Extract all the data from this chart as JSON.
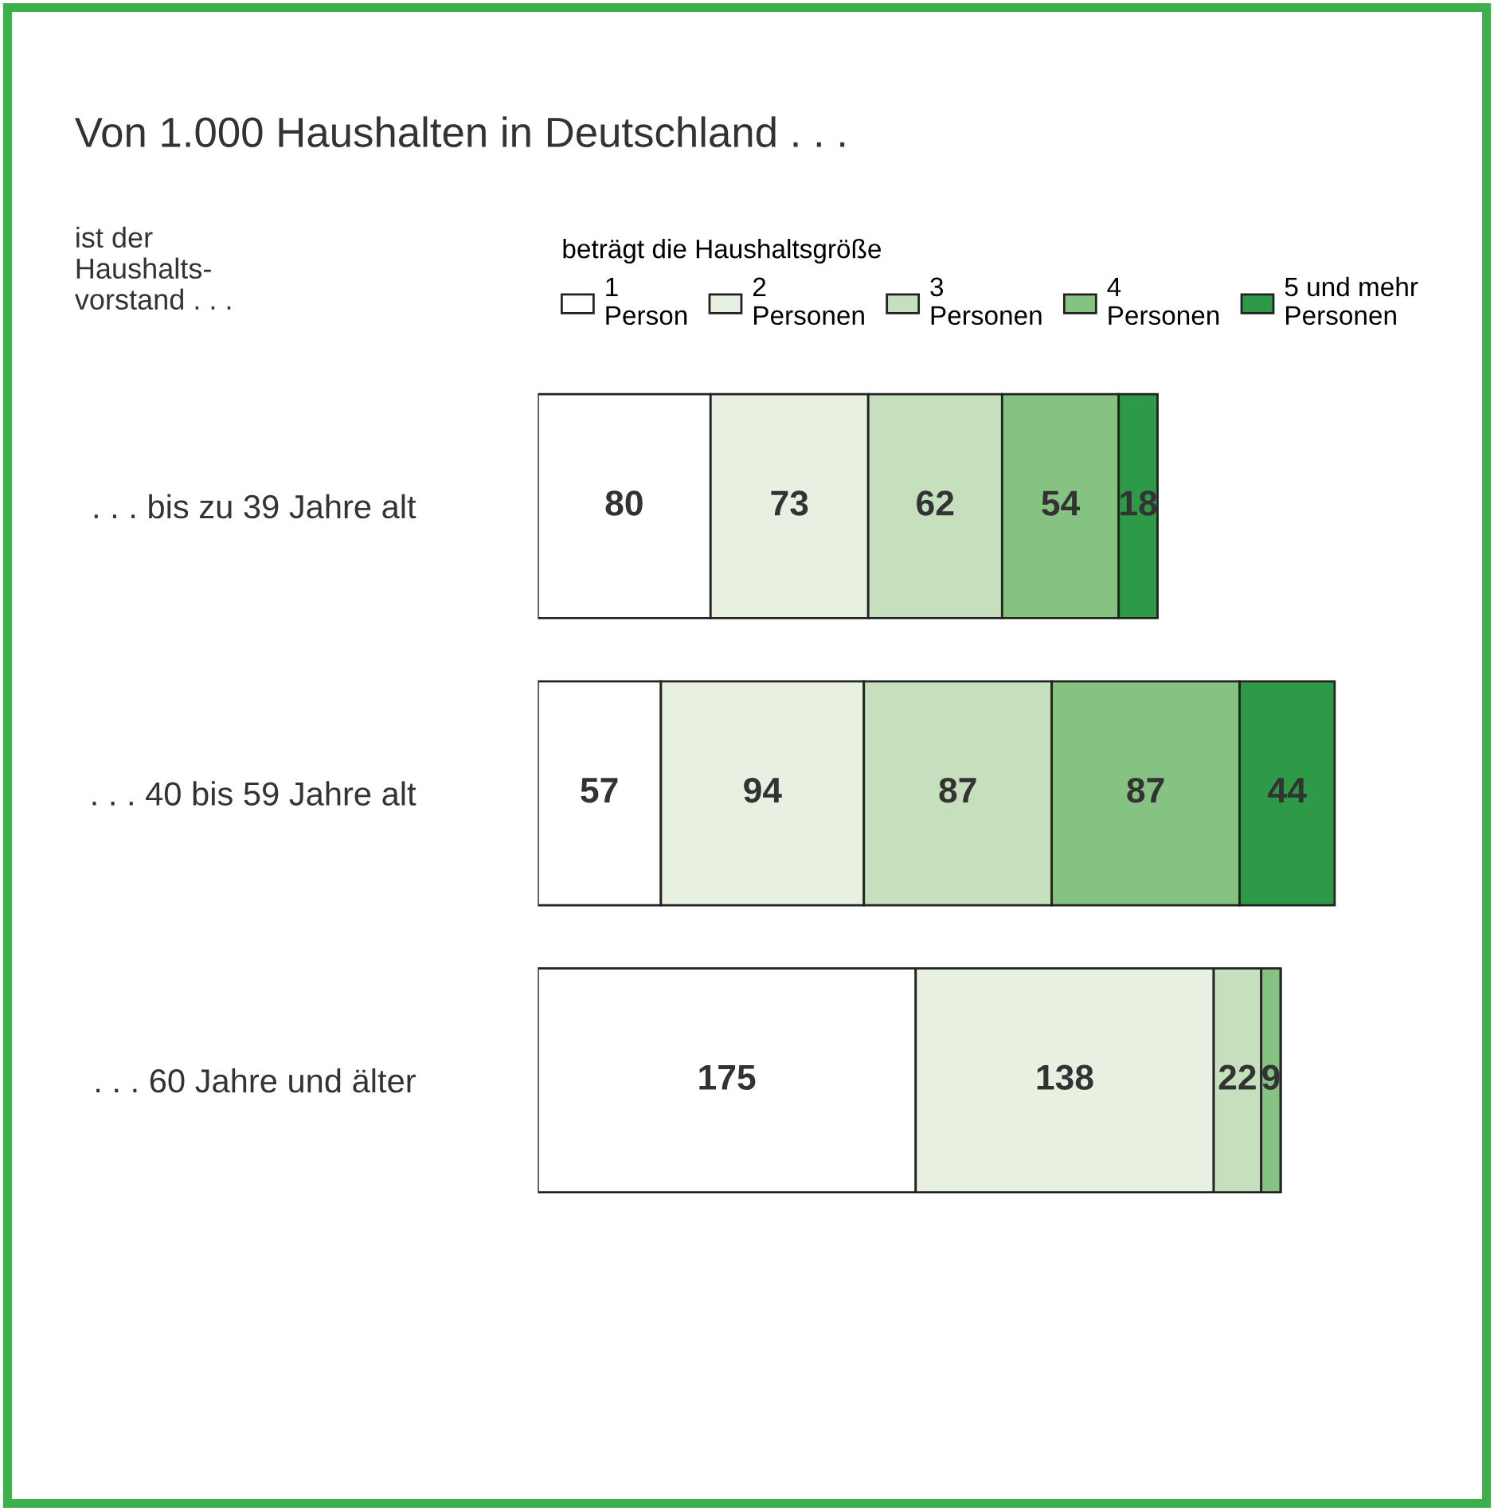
{
  "chart_data": {
    "type": "bar",
    "orientation": "horizontal",
    "stacked": true,
    "title": "Von 1.000 Haushalten in Deutschland . . .",
    "legend_title": "beträgt die Haushaltsgröße",
    "annotations": [
      "ist der\nHaushalts-\nvorstand . . ."
    ],
    "categories": [
      ". . . bis zu 39 Jahre alt",
      ". . . 40 bis 59 Jahre alt",
      ". . . 60 Jahre und älter"
    ],
    "series": [
      {
        "name": "1\nPerson",
        "color": "#ffffff",
        "values": [
          80,
          57,
          175
        ]
      },
      {
        "name": "2\nPersonen",
        "color": "#e8f0e2",
        "values": [
          73,
          94,
          138
        ]
      },
      {
        "name": "3\nPersonen",
        "color": "#c6e0be",
        "values": [
          62,
          87,
          22
        ]
      },
      {
        "name": "4\nPersonen",
        "color": "#86c282",
        "values": [
          54,
          87,
          9
        ]
      },
      {
        "name": "5 und mehr\nPersonen",
        "color": "#2e9a48",
        "values": [
          18,
          44,
          null
        ]
      }
    ],
    "data_labels": true,
    "tick_labels": false,
    "grid": false,
    "legend": "top"
  }
}
